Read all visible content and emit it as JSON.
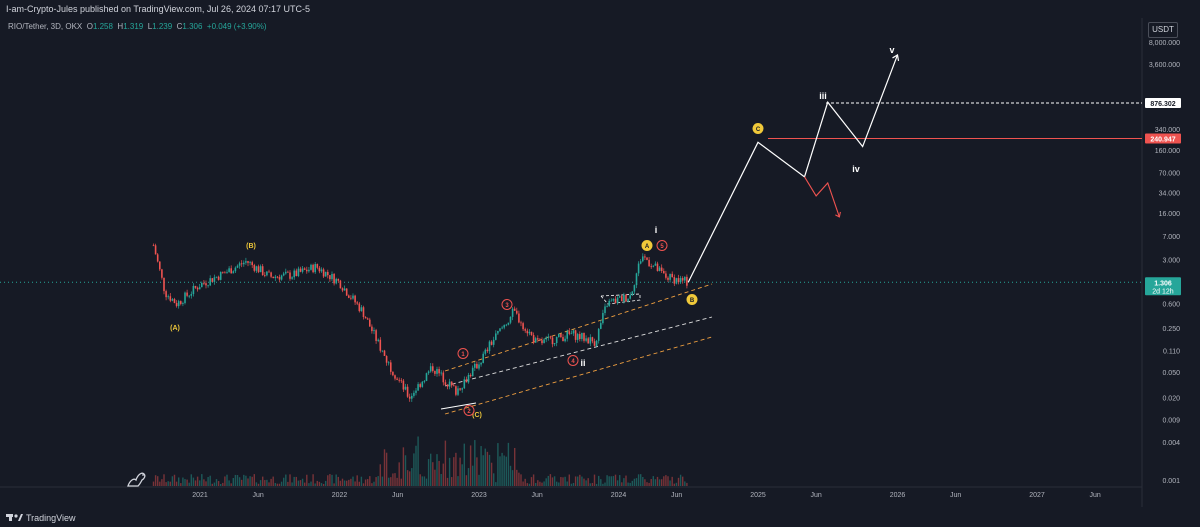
{
  "header": {
    "published": "I-am-Crypto-Jules published on TradingView.com, Jul 26, 2024 07:17 UTC-5"
  },
  "legend": {
    "symbol": "RIO/Tether, 3D, OKX",
    "o_label": "O",
    "o": "1.258",
    "h_label": "H",
    "h": "1.319",
    "l_label": "L",
    "l": "1.239",
    "c_label": "C",
    "c": "1.306",
    "change": "+0.049 (+3.90%)"
  },
  "currency_button": "USDT",
  "footer": {
    "brand": "TradingView"
  },
  "colors": {
    "background": "#161a25",
    "up": "#26a69a",
    "down": "#ef5350",
    "projection": "#ffffff",
    "wave_label_yellow": "#f0c93a",
    "wave_label_red": "#ef5350",
    "channel_orange": "#f0a040",
    "channel_white": "#e0e0e0"
  },
  "chart_data": {
    "type": "candlestick",
    "y_scale": "log",
    "y_tick_labels": [
      "8,000.000",
      "3,600.000",
      "340.000",
      "160.000",
      "70.000",
      "34.000",
      "16.000",
      "7.000",
      "3.000",
      "0.600",
      "0.250",
      "0.110",
      "0.050",
      "0.020",
      "0.009",
      "0.004",
      "0.001"
    ],
    "x_tick_labels": [
      "2021",
      "Jun",
      "2022",
      "Jun",
      "2023",
      "Jun",
      "2024",
      "Jun",
      "2025",
      "Jun",
      "2026",
      "Jun",
      "2027",
      "Jun"
    ],
    "price_tags": [
      {
        "value": "876.302",
        "style": "white"
      },
      {
        "value": "240.947",
        "style": "red"
      },
      {
        "value": "1.306",
        "sub": "2d 12h",
        "style": "green"
      }
    ],
    "wave_labels": [
      {
        "text": "(A)",
        "color": "yellow"
      },
      {
        "text": "(B)",
        "color": "yellow"
      },
      {
        "text": "(C)",
        "color": "yellow"
      },
      {
        "text": "1",
        "color": "red-circle"
      },
      {
        "text": "2",
        "color": "red-circle"
      },
      {
        "text": "3",
        "color": "red-circle"
      },
      {
        "text": "4",
        "color": "red-circle"
      },
      {
        "text": "5",
        "color": "red-circle"
      },
      {
        "text": "i",
        "color": "white"
      },
      {
        "text": "ii",
        "color": "white"
      },
      {
        "text": "iii",
        "color": "white"
      },
      {
        "text": "iv",
        "color": "white"
      },
      {
        "text": "v",
        "color": "white"
      },
      {
        "text": "A",
        "color": "yellow-circle"
      },
      {
        "text": "B",
        "color": "yellow-circle"
      },
      {
        "text": "C",
        "color": "yellow-circle"
      }
    ],
    "price_path": [
      {
        "date": "2020-09",
        "value": 5.0
      },
      {
        "date": "2020-10",
        "value": 0.9
      },
      {
        "date": "2020-11",
        "value": 0.6
      },
      {
        "date": "2021-01",
        "value": 1.2
      },
      {
        "date": "2021-03",
        "value": 1.8
      },
      {
        "date": "2021-05",
        "value": 2.8
      },
      {
        "date": "2021-07",
        "value": 1.6
      },
      {
        "date": "2021-09",
        "value": 1.7
      },
      {
        "date": "2021-11",
        "value": 2.3
      },
      {
        "date": "2022-01",
        "value": 1.3
      },
      {
        "date": "2022-03",
        "value": 0.45
      },
      {
        "date": "2022-05",
        "value": 0.08
      },
      {
        "date": "2022-07",
        "value": 0.02
      },
      {
        "date": "2022-09",
        "value": 0.06
      },
      {
        "date": "2022-11",
        "value": 0.025
      },
      {
        "date": "2023-01",
        "value": 0.07
      },
      {
        "date": "2023-02",
        "value": 0.14
      },
      {
        "date": "2023-04",
        "value": 0.45
      },
      {
        "date": "2023-06",
        "value": 0.14
      },
      {
        "date": "2023-09",
        "value": 0.2
      },
      {
        "date": "2023-11",
        "value": 0.15
      },
      {
        "date": "2023-12",
        "value": 0.6
      },
      {
        "date": "2024-02",
        "value": 0.8
      },
      {
        "date": "2024-03",
        "value": 3.5
      },
      {
        "date": "2024-05",
        "value": 1.6
      },
      {
        "date": "2024-07",
        "value": 1.306
      }
    ],
    "projection_path": [
      {
        "date": "2024-07",
        "value": 1.306
      },
      {
        "date": "2025-01",
        "value": 210
      },
      {
        "date": "2025-05",
        "value": 60
      },
      {
        "date": "2025-07",
        "value": 900
      },
      {
        "date": "2025-10",
        "value": 180
      },
      {
        "date": "2026-01",
        "value": 5000
      }
    ],
    "alt_path": [
      {
        "date": "2025-05",
        "value": 60
      },
      {
        "date": "2025-06",
        "value": 30
      },
      {
        "date": "2025-07",
        "value": 48
      },
      {
        "date": "2025-08",
        "value": 14
      }
    ],
    "levels": [
      {
        "value": 876.302,
        "color": "white",
        "style": "dashed"
      },
      {
        "value": 240.947,
        "color": "red",
        "style": "solid"
      }
    ],
    "current_price": 1.306
  }
}
